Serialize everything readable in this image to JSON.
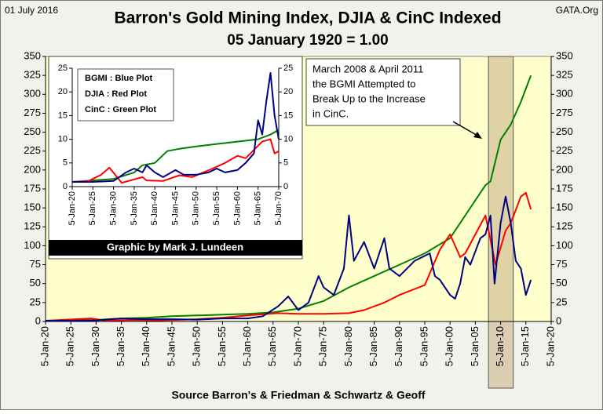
{
  "chart_data": [
    {
      "type": "line",
      "date": "01 July 2016",
      "source_site": "GATA.Org",
      "title": "Barron's Gold Mining Index, DJIA & CinC Indexed",
      "subtitle": "05 January 1920 = 1.00",
      "xlabel": "Source Barron's & Friedman & Schwartz & Geoff",
      "annotation": [
        "March 2008 & April 2011",
        "the BGMI Attempted to",
        "Break Up to the Increase",
        "in CinC."
      ],
      "highlight_span": [
        2007.6,
        2012.5
      ],
      "xlim": [
        1920,
        2020
      ],
      "xticks": [
        {
          "value": 1920,
          "label": "5-Jan-20"
        },
        {
          "value": 1925,
          "label": "5-Jan-25"
        },
        {
          "value": 1930,
          "label": "5-Jan-30"
        },
        {
          "value": 1935,
          "label": "5-Jan-35"
        },
        {
          "value": 1940,
          "label": "5-Jan-40"
        },
        {
          "value": 1945,
          "label": "5-Jan-45"
        },
        {
          "value": 1950,
          "label": "5-Jan-50"
        },
        {
          "value": 1955,
          "label": "5-Jan-55"
        },
        {
          "value": 1960,
          "label": "5-Jan-60"
        },
        {
          "value": 1965,
          "label": "5-Jan-65"
        },
        {
          "value": 1970,
          "label": "5-Jan-70"
        },
        {
          "value": 1975,
          "label": "5-Jan-75"
        },
        {
          "value": 1980,
          "label": "5-Jan-80"
        },
        {
          "value": 1985,
          "label": "5-Jan-85"
        },
        {
          "value": 1990,
          "label": "5-Jan-90"
        },
        {
          "value": 1995,
          "label": "5-Jan-95"
        },
        {
          "value": 2000,
          "label": "5-Jan-00"
        },
        {
          "value": 2005,
          "label": "5-Jan-05"
        },
        {
          "value": 2010,
          "label": "5-Jan-10"
        },
        {
          "value": 2015,
          "label": "5-Jan-15"
        },
        {
          "value": 2020,
          "label": "5-Jan-20"
        }
      ],
      "ylim": [
        0,
        350
      ],
      "yticks": [
        0,
        25,
        50,
        75,
        100,
        125,
        150,
        175,
        200,
        225,
        250,
        275,
        300,
        325,
        350
      ],
      "y2lim": [
        0,
        350
      ],
      "y2ticks": [
        0,
        25,
        50,
        75,
        100,
        125,
        150,
        175,
        200,
        225,
        250,
        275,
        300,
        325,
        350
      ],
      "series": [
        {
          "color": "#008000",
          "x": [
            1920,
            1930,
            1935,
            1940,
            1945,
            1950,
            1955,
            1960,
            1965,
            1970,
            1975,
            1980,
            1985,
            1990,
            1995,
            2000,
            2005,
            2007,
            2008,
            2010,
            2012,
            2014,
            2016
          ],
          "values": [
            1,
            2,
            4,
            5,
            7,
            8,
            9,
            10,
            12,
            17,
            27,
            45,
            60,
            75,
            90,
            110,
            160,
            180,
            185,
            240,
            260,
            290,
            325
          ]
        },
        {
          "color": "#ff0000",
          "x": [
            1920,
            1929,
            1932,
            1937,
            1942,
            1950,
            1955,
            1960,
            1966,
            1970,
            1975,
            1980,
            1983,
            1987,
            1990,
            1995,
            1998,
            2000,
            2002,
            2003,
            2007,
            2009,
            2011,
            2012,
            2014,
            2015,
            2016
          ],
          "values": [
            1,
            4,
            1,
            2,
            1.5,
            3,
            5,
            8,
            11,
            10,
            10,
            11,
            15,
            25,
            35,
            48,
            95,
            115,
            85,
            90,
            140,
            75,
            120,
            130,
            165,
            170,
            148
          ]
        },
        {
          "color": "#000080",
          "x": [
            1920,
            1925,
            1930,
            1933,
            1935,
            1940,
            1945,
            1950,
            1955,
            1960,
            1963,
            1966,
            1968,
            1970,
            1972,
            1974,
            1975,
            1977,
            1979,
            1980,
            1981,
            1983,
            1985,
            1987,
            1988,
            1990,
            1993,
            1996,
            1997,
            1998,
            2000,
            2001,
            2002,
            2003,
            2004,
            2006,
            2007,
            2008,
            2008.8,
            2010,
            2011,
            2012,
            2013,
            2014,
            2015,
            2016
          ],
          "values": [
            1,
            1,
            1.5,
            3,
            4,
            3,
            3,
            2.5,
            4,
            4,
            7,
            20,
            33,
            15,
            25,
            60,
            45,
            35,
            70,
            140,
            80,
            105,
            70,
            110,
            70,
            60,
            80,
            90,
            60,
            55,
            35,
            30,
            50,
            85,
            75,
            110,
            115,
            140,
            50,
            130,
            165,
            130,
            80,
            70,
            35,
            55
          ]
        }
      ]
    },
    {
      "type": "line",
      "credit": "Graphic by Mark J. Lundeen",
      "legend_text": [
        "BGMI : Blue Plot",
        "DJIA : Red Plot",
        "CinC : Green Plot"
      ],
      "xlim": [
        1920,
        1970
      ],
      "xticks": [
        {
          "value": 1920,
          "label": "5-Jan-20"
        },
        {
          "value": 1925,
          "label": "5-Jan-25"
        },
        {
          "value": 1930,
          "label": "5-Jan-30"
        },
        {
          "value": 1935,
          "label": "5-Jan-35"
        },
        {
          "value": 1940,
          "label": "5-Jan-40"
        },
        {
          "value": 1945,
          "label": "5-Jan-45"
        },
        {
          "value": 1950,
          "label": "5-Jan-50"
        },
        {
          "value": 1955,
          "label": "5-Jan-55"
        },
        {
          "value": 1960,
          "label": "5-Jan-60"
        },
        {
          "value": 1965,
          "label": "5-Jan-65"
        },
        {
          "value": 1970,
          "label": "5-Jan-70"
        }
      ],
      "ylim": [
        0,
        25
      ],
      "yticks": [
        0,
        5,
        10,
        15,
        20,
        25
      ],
      "y2lim": [
        0,
        25
      ],
      "y2ticks": [
        0,
        5,
        10,
        15,
        20,
        25
      ],
      "series": [
        {
          "color": "#008000",
          "x": [
            1920,
            1925,
            1930,
            1935,
            1937,
            1940,
            1943,
            1946,
            1950,
            1955,
            1960,
            1965,
            1968,
            1970
          ],
          "values": [
            1,
            1.3,
            1.6,
            3,
            4.5,
            5,
            7.5,
            8,
            8.5,
            9,
            9.5,
            10,
            11,
            12
          ]
        },
        {
          "color": "#ff0000",
          "x": [
            1920,
            1924,
            1927,
            1929,
            1932,
            1937,
            1938,
            1942,
            1946,
            1949,
            1954,
            1957,
            1960,
            1962,
            1966,
            1968,
            1969,
            1970
          ],
          "values": [
            1,
            1.2,
            2.5,
            4,
            0.8,
            2,
            1.3,
            1.2,
            2.4,
            2,
            3.8,
            5,
            6.5,
            6,
            9.5,
            10,
            7,
            7.5
          ]
        },
        {
          "color": "#000080",
          "x": [
            1920,
            1925,
            1930,
            1933,
            1935,
            1937,
            1938,
            1940,
            1942,
            1945,
            1947,
            1950,
            1953,
            1955,
            1957,
            1960,
            1962,
            1964,
            1965,
            1966,
            1967,
            1968,
            1969,
            1970
          ],
          "values": [
            1,
            1,
            1.2,
            3,
            3.8,
            3,
            4.5,
            3,
            2,
            3.5,
            2.5,
            2.5,
            3,
            3.8,
            3,
            3.5,
            5,
            7,
            14,
            11,
            18,
            24,
            15,
            10
          ]
        }
      ]
    }
  ]
}
